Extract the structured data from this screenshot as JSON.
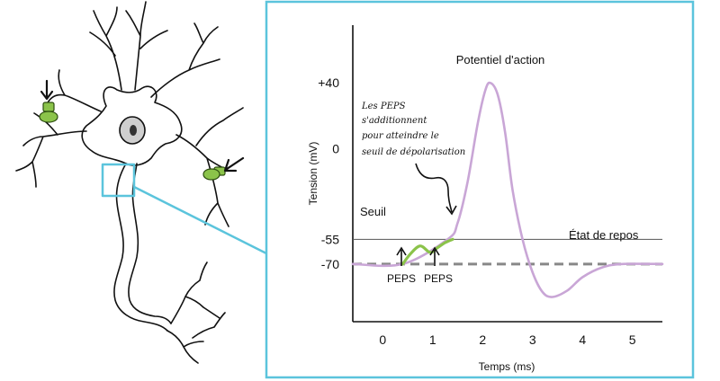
{
  "chart_data": {
    "type": "line",
    "xlabel": "Temps (ms)",
    "ylabel": "Tension (mV)",
    "x_ticks": [
      "0",
      "1",
      "2",
      "3",
      "4",
      "5"
    ],
    "y_ticks": [
      "+40",
      "0",
      "-55",
      "-70"
    ],
    "xlim": [
      -0.6,
      5.6
    ],
    "ylim": [
      -105,
      75
    ],
    "threshold_mV": -55,
    "resting_mV": -70,
    "threshold_label": "Seuil",
    "resting_label": "État de repos",
    "peak_label": "Potentiel d'action",
    "peps_labels": [
      "PEPS",
      "PEPS"
    ],
    "annotation_lines": [
      "Les PEPS",
      "s'additionnent",
      "pour atteindre le",
      "seuil de dépolarisation"
    ],
    "series": [
      {
        "color": "#c9a6d6",
        "x": [
          -0.6,
          0.4,
          1.3,
          1.5,
          1.7,
          1.9,
          2.05,
          2.15,
          2.3,
          2.45,
          2.6,
          2.8,
          3.0,
          3.2,
          3.4,
          3.7,
          4.0,
          4.4,
          4.8,
          5.6
        ],
        "y": [
          -70,
          -70,
          -55,
          -45,
          -20,
          15,
          35,
          40,
          33,
          10,
          -25,
          -55,
          -75,
          -87,
          -90,
          -86,
          -78,
          -72,
          -70,
          -70
        ]
      },
      {
        "color": "#8bc34a",
        "x": [
          0.4,
          0.55,
          0.75,
          0.95,
          1.1,
          1.25,
          1.4
        ],
        "y": [
          -70,
          -64,
          -59,
          -63,
          -60,
          -57,
          -55
        ]
      }
    ]
  },
  "colors": {
    "frame": "#5bc4dc",
    "action_potential": "#c9a6d6",
    "peps": "#8bc34a",
    "resting_line": "#888888",
    "threshold_line": "#555555"
  }
}
